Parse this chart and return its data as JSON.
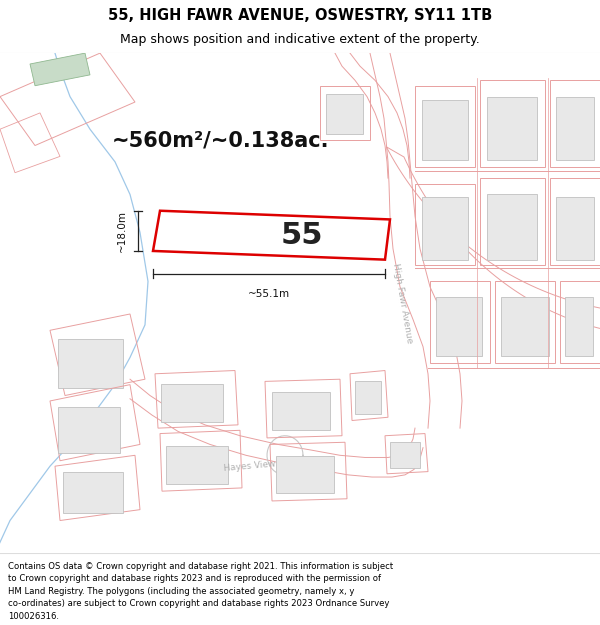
{
  "title_line1": "55, HIGH FAWR AVENUE, OSWESTRY, SY11 1TB",
  "title_line2": "Map shows position and indicative extent of the property.",
  "area_text": "~560m²/~0.138ac.",
  "label_55": "55",
  "dim_width": "~18.0m",
  "dim_length": "~55.1m",
  "street1": "High Fawr Avenue",
  "street2": "Hayes View",
  "footer_lines": [
    "Contains OS data © Crown copyright and database right 2021. This information is subject",
    "to Crown copyright and database rights 2023 and is reproduced with the permission of",
    "HM Land Registry. The polygons (including the associated geometry, namely x, y",
    "co-ordinates) are subject to Crown copyright and database rights 2023 Ordnance Survey",
    "100026316."
  ],
  "map_bg": "#ffffff",
  "poly_outline": "#e8a0a0",
  "building_fill": "#e8e8e8",
  "building_outline": "#c0c0c0",
  "road_fill": "#f5e8e8",
  "highlight_color": "#dd0000",
  "blue_line": "#a0c8e8",
  "figsize": [
    6.0,
    6.25
  ],
  "dpi": 100
}
